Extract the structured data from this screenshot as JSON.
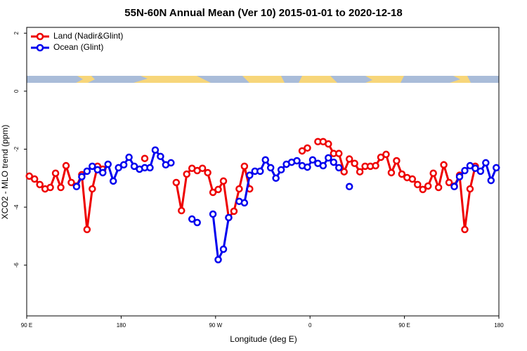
{
  "chart_data": {
    "type": "line",
    "title": "55N-60N Annual Mean (Ver 10)   2015-01-01 to 2020-12-18",
    "x_label": "Longitude (deg E)",
    "y_label": "XCO2 - MLO trend (ppm)",
    "xlim": [
      90,
      540
    ],
    "ylim": [
      -7.75,
      2.2
    ],
    "xticks": [
      {
        "value": 90,
        "label": "90 E"
      },
      180,
      {
        "value": 270,
        "label": "90 W"
      },
      {
        "value": 360,
        "label": "0"
      },
      {
        "value": 450,
        "label": "90 E"
      },
      {
        "value": 540,
        "label": "180"
      }
    ],
    "yticks": [
      -6,
      -4,
      -2,
      0,
      2
    ],
    "legend": "top-left",
    "x": [
      92.5,
      97.5,
      102.5,
      107.5,
      112.5,
      117.5,
      122.5,
      127.5,
      132.5,
      137.5,
      142.5,
      147.5,
      152.5,
      157.5,
      162.5,
      167.5,
      172.5,
      177.5,
      182.5,
      187.5,
      192.5,
      197.5,
      202.5,
      207.5,
      212.5,
      217.5,
      222.5,
      227.5,
      232.5,
      237.5,
      242.5,
      247.5,
      252.5,
      257.5,
      262.5,
      267.5,
      272.5,
      277.5,
      282.5,
      287.5,
      292.5,
      297.5,
      302.5,
      307.5,
      312.5,
      317.5,
      322.5,
      327.5,
      332.5,
      337.5,
      342.5,
      347.5,
      352.5,
      357.5,
      362.5,
      367.5,
      372.5,
      377.5,
      382.5,
      387.5,
      392.5,
      397.5,
      402.5,
      407.5,
      412.5,
      417.5,
      422.5,
      427.5,
      432.5,
      437.5,
      442.5,
      447.5,
      452.5,
      457.5,
      462.5,
      467.5,
      472.5,
      477.5,
      482.5,
      487.5,
      492.5,
      497.5,
      502.5,
      507.5,
      512.5,
      517.5,
      522.5,
      527.5,
      532.5,
      537.5
    ],
    "series": [
      {
        "name": "Land (Nadir&Glint)",
        "color": "#ee0000",
        "values": [
          -2.93,
          -3.03,
          -3.22,
          -3.37,
          -3.32,
          -2.83,
          -3.32,
          -2.57,
          -3.15,
          -3.27,
          -2.88,
          -4.77,
          -3.37,
          -2.59,
          -2.69,
          null,
          null,
          null,
          null,
          null,
          null,
          null,
          -2.32,
          null,
          null,
          null,
          null,
          null,
          -3.15,
          -4.12,
          -2.86,
          -2.66,
          -2.74,
          -2.66,
          -2.81,
          -3.49,
          -3.39,
          -3.1,
          -4.36,
          -4.14,
          -3.37,
          -2.59,
          -3.37,
          null,
          null,
          null,
          null,
          null,
          null,
          null,
          null,
          null,
          -2.06,
          -1.96,
          null,
          -1.74,
          -1.74,
          -1.82,
          -2.15,
          -2.15,
          -2.78,
          -2.34,
          -2.49,
          -2.78,
          -2.59,
          -2.59,
          -2.57,
          -2.28,
          -2.18,
          -2.81,
          -2.4,
          -2.86,
          -2.98,
          -3.03,
          -3.22,
          -3.39,
          -3.27,
          -2.83,
          -3.32,
          -2.54,
          -3.15,
          -3.27,
          -2.9,
          -4.77,
          -3.37,
          -2.59,
          null,
          null,
          null,
          null
        ]
      },
      {
        "name": "Ocean (Glint)",
        "color": "#0000ee",
        "values": [
          null,
          null,
          null,
          null,
          null,
          null,
          null,
          null,
          null,
          -3.29,
          -2.95,
          -2.76,
          -2.59,
          -2.71,
          -2.81,
          -2.52,
          -3.1,
          -2.64,
          -2.54,
          -2.28,
          -2.59,
          -2.69,
          -2.64,
          -2.64,
          -2.03,
          -2.25,
          -2.54,
          -2.47,
          null,
          null,
          null,
          -4.41,
          -4.53,
          null,
          null,
          -4.24,
          -5.81,
          -5.45,
          -4.36,
          null,
          -3.8,
          -3.85,
          -2.9,
          -2.76,
          -2.76,
          -2.37,
          -2.64,
          -3.0,
          -2.71,
          -2.52,
          -2.45,
          -2.4,
          -2.57,
          -2.62,
          -2.37,
          -2.49,
          -2.57,
          -2.3,
          -2.45,
          -2.64,
          null,
          -3.29,
          null,
          null,
          null,
          null,
          null,
          null,
          null,
          null,
          null,
          null,
          null,
          null,
          null,
          null,
          null,
          null,
          null,
          null,
          null,
          -3.29,
          -2.95,
          -2.74,
          -2.57,
          -2.66,
          -2.76,
          -2.47,
          -3.08,
          -2.64
        ]
      }
    ]
  }
}
